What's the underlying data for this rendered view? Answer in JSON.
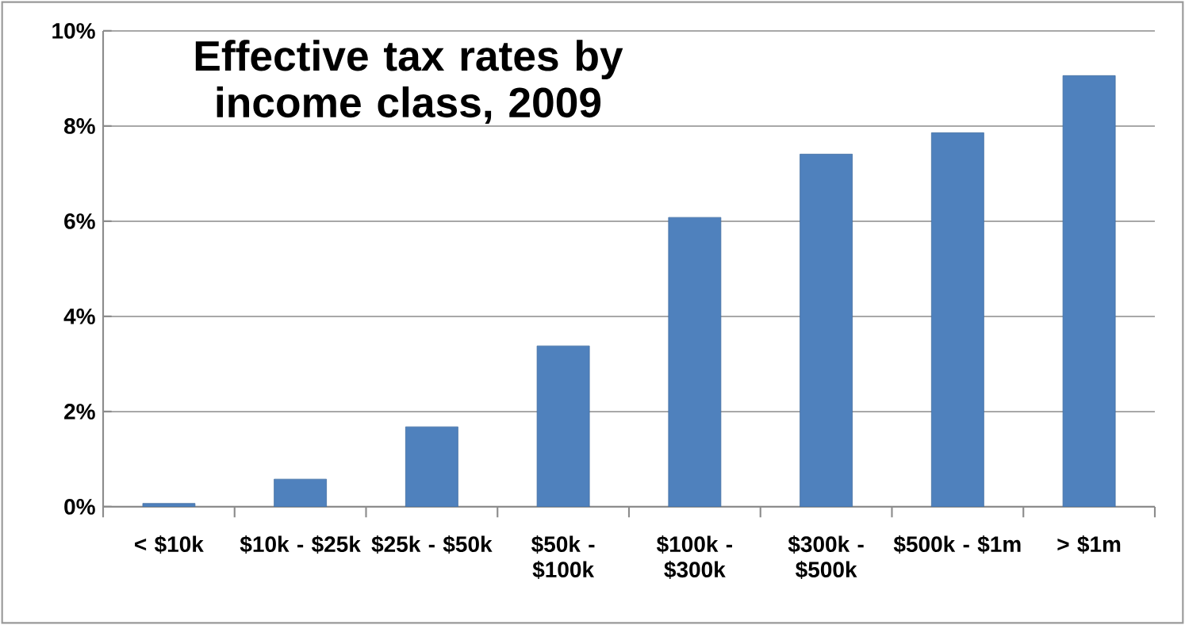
{
  "chart_data": {
    "type": "bar",
    "title": "Effective tax rates by income class, 2009",
    "categories": [
      "< $10k",
      "$10k - $25k",
      "$25k - $50k",
      "$50k - $100k",
      "$100k - $300k",
      "$300k - $500k",
      "$500k - $1m",
      "> $1m"
    ],
    "values": [
      0.07,
      0.58,
      1.68,
      3.38,
      6.08,
      7.41,
      7.86,
      9.06
    ],
    "color": "#4f81bd",
    "ylim": [
      0,
      10
    ],
    "yticks": [
      {
        "value": 0,
        "label": "0%"
      },
      {
        "value": 2,
        "label": "2%"
      },
      {
        "value": 4,
        "label": "4%"
      },
      {
        "value": 6,
        "label": "6%"
      },
      {
        "value": 8,
        "label": "8%"
      },
      {
        "value": 10,
        "label": "10%"
      }
    ],
    "grid": "y"
  }
}
